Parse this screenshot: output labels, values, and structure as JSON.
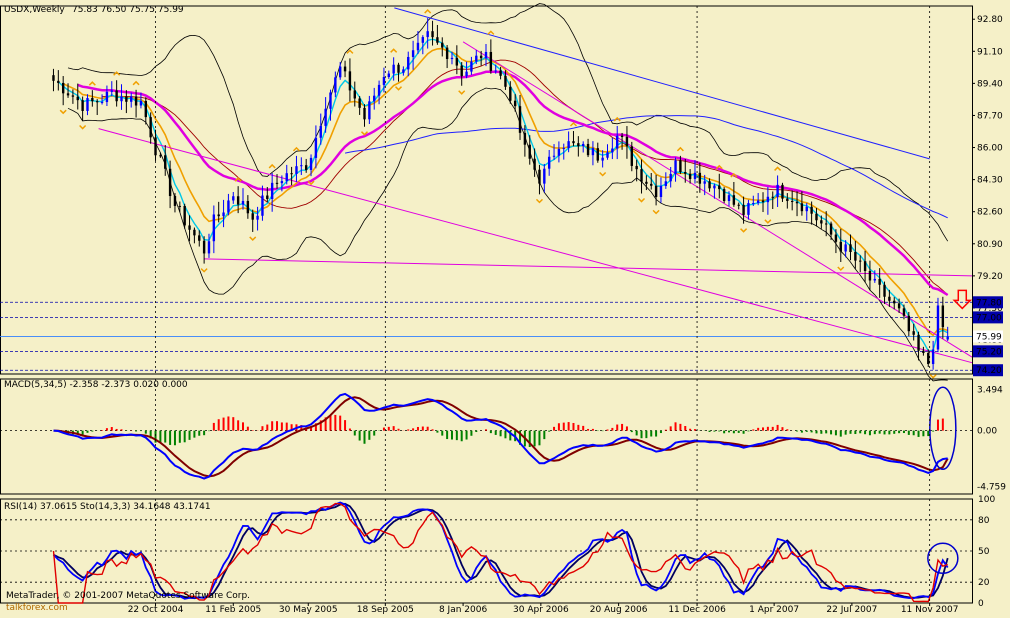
{
  "window": {
    "symbol_label": "USDX,Weekly",
    "ohlc_label": "75.83 76.50 75.75 75.99",
    "macd_label": "MACD(5,34,5) -2.358 -2.373 0.020 0.000",
    "osc_label": "RSI(14) 37.0615  Sto(14,3,3) 34.1648 43.1741",
    "copyright_label": "MetaTrader, © 2001-2007 MetaQuotes Software Corp.",
    "watermark_site": "talkforex.com"
  },
  "colors": {
    "background": "#f5f0c8",
    "bull_candle": "#0000ff",
    "bear_candle": "#000000",
    "ma_magenta": "#e000e0",
    "ma_orange": "#f0a000",
    "ma_cyan": "#00c8e8",
    "bollinger": "#000000",
    "ma_darkred": "#a00000",
    "ma_blue": "#2020ff",
    "channel": "#e000e0",
    "macd_main": "#0000ff",
    "macd_signal": "#800000",
    "hist_pos": "#ff0000",
    "hist_neg": "#008000",
    "rsi": "#e00000",
    "stoch_main": "#0000ff",
    "stoch_signal": "#000060",
    "annotation": "#0000cc",
    "arrow": "#ff0000",
    "fractal": "#f0a000"
  },
  "chart_data": [
    {
      "type": "candlestick",
      "title": "USDX,Weekly",
      "ohlc_last": {
        "open": 75.83,
        "high": 76.5,
        "low": 75.75,
        "close": 75.99
      },
      "y_ticks": [
        92.8,
        91.1,
        89.4,
        87.7,
        86.0,
        84.3,
        82.6,
        80.9,
        79.2,
        77.5,
        75.8
      ],
      "highlighted_levels": [
        77.8,
        77.0,
        75.99,
        75.2,
        74.2
      ],
      "x_ticks": [
        "22 Oct 2004",
        "11 Feb 2005",
        "30 May 2005",
        "18 Sep 2005",
        "8 Jan 2006",
        "30 Apr 2006",
        "20 Aug 2006",
        "11 Dec 2006",
        "1 Apr 2007",
        "22 Jul 2007",
        "11 Nov 2007"
      ],
      "ylim": [
        74.0,
        93.5
      ],
      "grid": true,
      "annotation": "down arrow near 77.80",
      "close_path": [
        {
          "x": "2004-05-28",
          "y": 89.2
        },
        {
          "x": "2004-07-09",
          "y": 88.4
        },
        {
          "x": "2004-08-20",
          "y": 89.2
        },
        {
          "x": "2004-10-01",
          "y": 88.2
        },
        {
          "x": "2004-10-22",
          "y": 85.6
        },
        {
          "x": "2004-11-19",
          "y": 82.8
        },
        {
          "x": "2004-12-31",
          "y": 80.9
        },
        {
          "x": "2005-01-14",
          "y": 82.4
        },
        {
          "x": "2005-02-11",
          "y": 83.6
        },
        {
          "x": "2005-03-11",
          "y": 82.0
        },
        {
          "x": "2005-04-22",
          "y": 84.3
        },
        {
          "x": "2005-05-30",
          "y": 85.5
        },
        {
          "x": "2005-06-24",
          "y": 88.7
        },
        {
          "x": "2005-07-15",
          "y": 90.2
        },
        {
          "x": "2005-08-19",
          "y": 87.2
        },
        {
          "x": "2005-09-18",
          "y": 89.9
        },
        {
          "x": "2005-10-14",
          "y": 90.5
        },
        {
          "x": "2005-11-18",
          "y": 92.2
        },
        {
          "x": "2005-12-23",
          "y": 90.8
        },
        {
          "x": "2006-01-08",
          "y": 89.6
        },
        {
          "x": "2006-02-03",
          "y": 90.6
        },
        {
          "x": "2006-02-24",
          "y": 90.1
        },
        {
          "x": "2006-03-17",
          "y": 89.0
        },
        {
          "x": "2006-04-07",
          "y": 86.2
        },
        {
          "x": "2006-04-30",
          "y": 84.5
        },
        {
          "x": "2006-05-26",
          "y": 86.2
        },
        {
          "x": "2006-06-23",
          "y": 85.6
        },
        {
          "x": "2006-07-21",
          "y": 85.4
        },
        {
          "x": "2006-08-20",
          "y": 86.9
        },
        {
          "x": "2006-09-15",
          "y": 85.2
        },
        {
          "x": "2006-10-13",
          "y": 83.8
        },
        {
          "x": "2006-11-10",
          "y": 84.8
        },
        {
          "x": "2006-12-11",
          "y": 84.2
        },
        {
          "x": "2007-01-12",
          "y": 84.0
        },
        {
          "x": "2007-02-16",
          "y": 82.9
        },
        {
          "x": "2007-04-01",
          "y": 83.6
        },
        {
          "x": "2007-05-25",
          "y": 82.4
        },
        {
          "x": "2007-06-22",
          "y": 81.6
        },
        {
          "x": "2007-07-22",
          "y": 80.6
        },
        {
          "x": "2007-08-24",
          "y": 78.6
        },
        {
          "x": "2007-09-28",
          "y": 76.9
        },
        {
          "x": "2007-10-26",
          "y": 75.0
        },
        {
          "x": "2007-11-11",
          "y": 74.6
        },
        {
          "x": "2007-11-23",
          "y": 77.5
        },
        {
          "x": "2007-12-07",
          "y": 75.99
        }
      ]
    },
    {
      "type": "macd",
      "title": "MACD(5,34,5)",
      "values": {
        "main": -2.358,
        "signal": -2.373,
        "osma": 0.02,
        "zero": 0.0
      },
      "y_ticks": [
        3.494,
        0.0,
        -4.759
      ],
      "ylim": [
        -5.4,
        4.4
      ],
      "annotation": "blue ellipse around latest bars"
    },
    {
      "type": "oscillator",
      "title": "RSI(14) / Sto(14,3,3)",
      "values": {
        "rsi": 37.0615,
        "stoch_main": 34.1648,
        "stoch_signal": 43.1741
      },
      "y_ticks": [
        100,
        80,
        50,
        20,
        0
      ],
      "ylim": [
        0,
        100
      ],
      "annotation": "blue circle around latest values"
    }
  ]
}
